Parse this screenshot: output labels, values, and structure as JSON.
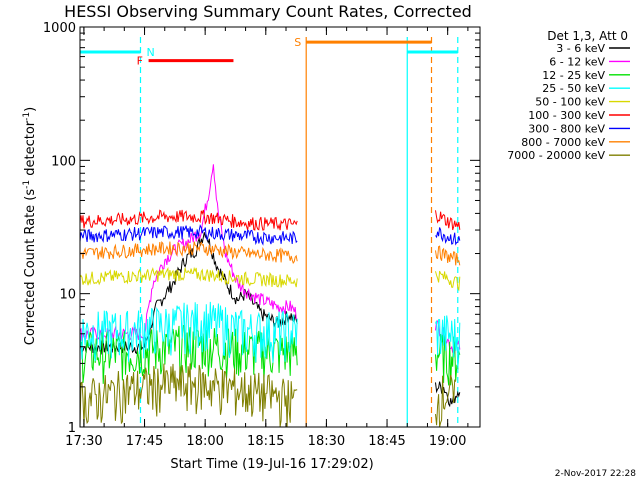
{
  "chart_data": {
    "type": "line",
    "title": "HESSI Observing Summary Count Rates, Corrected",
    "xlabel": "Start Time (19-Jul-16 17:29:02)",
    "ylabel_main": "Corrected Count Rate (s",
    "ylabel_sup1": "-1",
    "ylabel_mid": " detector",
    "ylabel_sup2": "-1",
    "ylabel_end": ")",
    "yscale": "log",
    "ylim": [
      1,
      1000
    ],
    "xlim": [
      "17:29:02",
      "19:08:00"
    ],
    "x_ticks": [
      "17:30",
      "17:45",
      "18:00",
      "18:15",
      "18:30",
      "18:45",
      "19:00"
    ],
    "y_ticks": [
      "1",
      "10",
      "100",
      "1000"
    ],
    "legend_title": "Det 1,3, Att 0",
    "legend_position": "right",
    "timestamp": "2-Nov-2017 22:28",
    "colors": {
      "3 - 6 keV": "#000000",
      "6 - 12 keV": "#ff00ff",
      "12 - 25 keV": "#00e000",
      "25 - 50 keV": "#00ffff",
      "50 - 100 keV": "#d8d800",
      "100 - 300 keV": "#ff0000",
      "300 - 800 keV": "#0000ff",
      "800 - 7000 keV": "#ff8000",
      "7000 - 20000 keV": "#7f7f00",
      "flags_cyan": "#00ffff",
      "flags_red": "#ff0000",
      "flags_orange": "#ff8000"
    },
    "series": [
      {
        "name": "3 - 6 keV",
        "segments": [
          {
            "t": [
              "17:29:02",
              "17:45:00",
              "17:48:00",
              "17:52:00",
              "17:55:00",
              "17:58:00",
              "18:00:00",
              "18:03:00",
              "18:06:00",
              "18:08:00",
              "18:10:00",
              "18:14:00",
              "18:18:00",
              "18:21:00",
              "18:23:00"
            ],
            "v": [
              4,
              4,
              8,
              12,
              18,
              22,
              30,
              16,
              11,
              9,
              10,
              7,
              6,
              7,
              6
            ]
          },
          {
            "t": [
              "18:57:00",
              "18:59:00",
              "19:01:00",
              "19:03:00"
            ],
            "v": [
              2,
              2,
              1.5,
              2
            ]
          }
        ]
      },
      {
        "name": "6 - 12 keV",
        "segments": [
          {
            "t": [
              "17:29:02",
              "17:45:00",
              "17:47:00",
              "17:50:00",
              "17:53:00",
              "17:56:00",
              "17:59:00",
              "18:01:00",
              "18:02:00",
              "18:03:00",
              "18:05:00",
              "18:08:00",
              "18:11:00",
              "18:14:00",
              "18:18:00",
              "18:21:00",
              "18:23:00"
            ],
            "v": [
              5,
              5,
              12,
              18,
              22,
              25,
              30,
              60,
              100,
              45,
              20,
              12,
              10,
              9,
              8,
              8,
              7
            ]
          },
          {
            "t": [
              "18:57:00",
              "18:59:00",
              "19:01:00",
              "19:03:00"
            ],
            "v": [
              6,
              5,
              4,
              4
            ]
          }
        ]
      },
      {
        "name": "12 - 25 keV",
        "segments": [
          {
            "t": [
              "17:29:02",
              "17:40:00",
              "17:50:00",
              "18:00:00",
              "18:10:00",
              "18:23:00"
            ],
            "v": [
              3.5,
              3.5,
              3.8,
              4,
              3.6,
              3.5
            ]
          },
          {
            "t": [
              "18:57:00",
              "19:03:00"
            ],
            "v": [
              3.5,
              3.2
            ]
          }
        ]
      },
      {
        "name": "25 - 50 keV",
        "segments": [
          {
            "t": [
              "17:29:02",
              "17:40:00",
              "17:50:00",
              "18:00:00",
              "18:10:00",
              "18:23:00"
            ],
            "v": [
              5,
              5,
              5.5,
              6,
              5,
              5
            ]
          },
          {
            "t": [
              "18:57:00",
              "19:03:00"
            ],
            "v": [
              5,
              4.5
            ]
          }
        ]
      },
      {
        "name": "50 - 100 keV",
        "segments": [
          {
            "t": [
              "17:29:02",
              "17:40:00",
              "17:50:00",
              "18:00:00",
              "18:10:00",
              "18:23:00"
            ],
            "v": [
              13,
              13.5,
              14,
              14,
              13,
              12.5
            ]
          },
          {
            "t": [
              "18:57:00",
              "19:00:00",
              "19:03:00"
            ],
            "v": [
              14,
              13,
              12
            ]
          }
        ]
      },
      {
        "name": "100 - 300 keV",
        "segments": [
          {
            "t": [
              "17:29:02",
              "17:40:00",
              "17:50:00",
              "18:00:00",
              "18:10:00",
              "18:23:00"
            ],
            "v": [
              35,
              36,
              38,
              38,
              34,
              33
            ]
          },
          {
            "t": [
              "18:57:00",
              "19:00:00",
              "19:03:00"
            ],
            "v": [
              40,
              35,
              32
            ]
          }
        ]
      },
      {
        "name": "300 - 800 keV",
        "segments": [
          {
            "t": [
              "17:29:02",
              "17:40:00",
              "17:50:00",
              "18:00:00",
              "18:10:00",
              "18:23:00"
            ],
            "v": [
              27,
              28,
              29,
              29,
              27,
              26
            ]
          },
          {
            "t": [
              "18:57:00",
              "19:00:00",
              "19:03:00"
            ],
            "v": [
              30,
              27,
              25
            ]
          }
        ]
      },
      {
        "name": "800 - 7000 keV",
        "segments": [
          {
            "t": [
              "17:29:02",
              "17:40:00",
              "17:50:00",
              "18:00:00",
              "18:10:00",
              "18:23:00"
            ],
            "v": [
              20,
              21,
              22,
              22,
              20,
              19
            ]
          },
          {
            "t": [
              "18:57:00",
              "19:00:00",
              "19:03:00"
            ],
            "v": [
              21,
              19,
              18
            ]
          }
        ]
      },
      {
        "name": "7000 - 20000 keV",
        "segments": [
          {
            "t": [
              "17:29:02",
              "17:40:00",
              "17:50:00",
              "18:00:00",
              "18:10:00",
              "18:23:00"
            ],
            "v": [
              1.5,
              1.8,
              2,
              2,
              1.8,
              1.5
            ]
          },
          {
            "t": [
              "18:57:00",
              "19:00:00",
              "19:02:00"
            ],
            "v": [
              1.5,
              1.8,
              1.5
            ]
          }
        ]
      }
    ],
    "flag_bars": [
      {
        "label": "",
        "color": "#00ffff",
        "start": "17:29:02",
        "end": "17:44:00",
        "level": 650
      },
      {
        "label": "N",
        "color": "#00ffff",
        "start": "17:44:00",
        "end": "17:44:00",
        "level": 650
      },
      {
        "label": "",
        "color": "#00ffff",
        "start": "18:50:00",
        "end": "19:02:30",
        "level": 650
      },
      {
        "label": "F",
        "color": "#ff0000",
        "start": "17:46:00",
        "end": "18:07:00",
        "level": 560
      },
      {
        "label": "S",
        "color": "#ff8000",
        "start": "18:25:00",
        "end": "18:56:00",
        "level": 770
      }
    ],
    "vertical_lines": [
      {
        "time": "17:44:00",
        "color": "#00ffff",
        "style": "dashed"
      },
      {
        "time": "18:25:00",
        "color": "#ff8000",
        "style": "solid"
      },
      {
        "time": "18:50:00",
        "color": "#00ffff",
        "style": "solid"
      },
      {
        "time": "18:56:00",
        "color": "#ff8000",
        "style": "dashed"
      },
      {
        "time": "19:02:30",
        "color": "#00ffff",
        "style": "dashed"
      }
    ]
  }
}
